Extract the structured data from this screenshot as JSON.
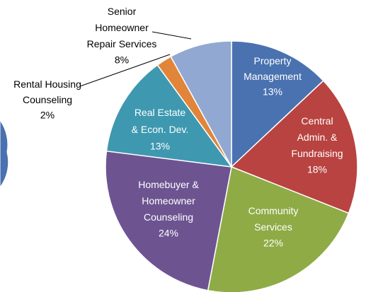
{
  "chart_data": {
    "type": "pie",
    "categories": [
      "Property\nManagement",
      "Central\nAdmin. &\nFundraising",
      "Community\nServices",
      "Homebuyer &\nHomeowner\nCounseling",
      "Real Estate\n& Econ. Dev.",
      "Rental Housing\nCounseling",
      "Senior\nHomeowner\nRepair Services"
    ],
    "values": [
      13,
      18,
      22,
      24,
      13,
      2,
      8
    ],
    "value_labels": [
      "13%",
      "18%",
      "22%",
      "24%",
      "13%",
      "2%",
      "8%"
    ],
    "colors": [
      "#4a72b0",
      "#b84340",
      "#8fab46",
      "#6d5491",
      "#3e98b0",
      "#e0853a",
      "#91a8d2"
    ]
  }
}
